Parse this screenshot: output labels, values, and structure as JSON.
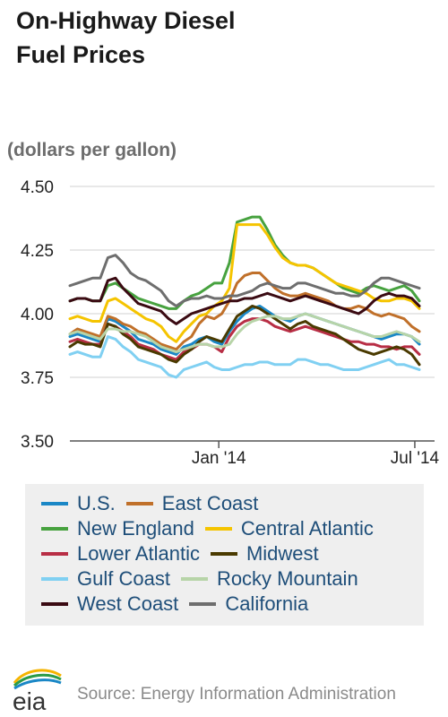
{
  "title_line1": "On-Highway Diesel",
  "title_line2": "Fuel Prices",
  "source": "Source: Energy Information Administration",
  "logo_text": "eia",
  "chart_data": {
    "type": "line",
    "title": "On-Highway Diesel Fuel Prices",
    "ylabel": "(dollars per gallon)",
    "ylim": [
      3.5,
      4.5
    ],
    "yticks": [
      "4.50",
      "4.25",
      "4.00",
      "3.75",
      "3.50"
    ],
    "ytick_values": [
      4.5,
      4.25,
      4.0,
      3.75,
      3.5
    ],
    "xticks": [
      {
        "label": "Jan '14",
        "x": 19.6
      },
      {
        "label": "Jul '14",
        "x": 45.4
      }
    ],
    "xlim": [
      0,
      48
    ],
    "grid": true,
    "legend_position": "bottom",
    "series": [
      {
        "name": "U.S.",
        "color": "#1a87c6",
        "values": [
          3.91,
          3.92,
          3.91,
          3.9,
          3.89,
          3.98,
          3.97,
          3.95,
          3.93,
          3.9,
          3.89,
          3.88,
          3.86,
          3.85,
          3.84,
          3.87,
          3.88,
          3.9,
          3.91,
          3.89,
          3.88,
          3.93,
          3.97,
          4.0,
          4.02,
          4.03,
          4.01,
          3.99,
          3.98,
          3.97,
          3.99,
          4.0,
          3.99,
          3.98,
          3.97,
          3.96,
          3.95,
          3.94,
          3.93,
          3.92,
          3.91,
          3.9,
          3.91,
          3.92,
          3.92,
          3.91,
          3.88
        ]
      },
      {
        "name": "East Coast",
        "color": "#c0702a",
        "values": [
          3.92,
          3.94,
          3.93,
          3.92,
          3.91,
          3.99,
          3.98,
          3.96,
          3.95,
          3.93,
          3.92,
          3.9,
          3.88,
          3.87,
          3.86,
          3.89,
          3.91,
          3.96,
          3.99,
          3.98,
          4.0,
          4.05,
          4.12,
          4.15,
          4.16,
          4.16,
          4.13,
          4.1,
          4.08,
          4.07,
          4.07,
          4.08,
          4.07,
          4.06,
          4.05,
          4.03,
          4.02,
          4.02,
          4.03,
          4.02,
          4.0,
          3.99,
          4.0,
          3.99,
          3.98,
          3.95,
          3.93
        ]
      },
      {
        "name": "New England",
        "color": "#47a23f",
        "values": [
          4.05,
          4.06,
          4.06,
          4.05,
          4.05,
          4.11,
          4.12,
          4.1,
          4.08,
          4.06,
          4.05,
          4.04,
          4.03,
          4.02,
          4.02,
          4.05,
          4.07,
          4.08,
          4.1,
          4.12,
          4.12,
          4.2,
          4.36,
          4.37,
          4.38,
          4.38,
          4.33,
          4.27,
          4.23,
          4.2,
          4.19,
          4.19,
          4.18,
          4.16,
          4.14,
          4.12,
          4.1,
          4.09,
          4.08,
          4.1,
          4.11,
          4.1,
          4.09,
          4.1,
          4.11,
          4.09,
          4.05
        ]
      },
      {
        "name": "Central Atlantic",
        "color": "#f5c400",
        "values": [
          3.98,
          3.99,
          3.98,
          3.97,
          3.97,
          4.05,
          4.06,
          4.04,
          4.02,
          4.0,
          3.98,
          3.97,
          3.95,
          3.91,
          3.89,
          3.93,
          3.96,
          3.99,
          4.0,
          4.03,
          4.05,
          4.1,
          4.35,
          4.35,
          4.35,
          4.35,
          4.31,
          4.26,
          4.22,
          4.2,
          4.19,
          4.19,
          4.18,
          4.16,
          4.14,
          4.12,
          4.11,
          4.1,
          4.09,
          4.08,
          4.06,
          4.05,
          4.05,
          4.06,
          4.06,
          4.05,
          4.02
        ]
      },
      {
        "name": "Lower Atlantic",
        "color": "#b82e45",
        "values": [
          3.89,
          3.9,
          3.89,
          3.88,
          3.88,
          3.96,
          3.95,
          3.93,
          3.91,
          3.88,
          3.87,
          3.86,
          3.84,
          3.83,
          3.82,
          3.85,
          3.86,
          3.88,
          3.88,
          3.87,
          3.85,
          3.91,
          3.95,
          3.97,
          3.98,
          3.98,
          3.97,
          3.95,
          3.94,
          3.93,
          3.94,
          3.95,
          3.94,
          3.93,
          3.92,
          3.91,
          3.9,
          3.89,
          3.89,
          3.88,
          3.88,
          3.87,
          3.87,
          3.86,
          3.87,
          3.87,
          3.84
        ]
      },
      {
        "name": "Midwest",
        "color": "#4a3a00",
        "values": [
          3.87,
          3.89,
          3.88,
          3.88,
          3.87,
          3.96,
          3.95,
          3.92,
          3.9,
          3.87,
          3.86,
          3.85,
          3.84,
          3.82,
          3.81,
          3.84,
          3.86,
          3.89,
          3.91,
          3.9,
          3.89,
          3.94,
          3.99,
          4.01,
          4.03,
          4.02,
          4.0,
          3.98,
          3.96,
          3.94,
          3.96,
          3.97,
          3.95,
          3.94,
          3.93,
          3.92,
          3.9,
          3.88,
          3.86,
          3.85,
          3.84,
          3.85,
          3.86,
          3.87,
          3.86,
          3.84,
          3.8
        ]
      },
      {
        "name": "Gulf Coast",
        "color": "#80d0f2",
        "values": [
          3.84,
          3.85,
          3.84,
          3.83,
          3.83,
          3.91,
          3.9,
          3.87,
          3.85,
          3.82,
          3.81,
          3.8,
          3.79,
          3.76,
          3.75,
          3.78,
          3.79,
          3.8,
          3.81,
          3.79,
          3.78,
          3.78,
          3.79,
          3.8,
          3.8,
          3.81,
          3.81,
          3.8,
          3.8,
          3.8,
          3.82,
          3.82,
          3.81,
          3.8,
          3.8,
          3.79,
          3.78,
          3.78,
          3.78,
          3.79,
          3.8,
          3.81,
          3.82,
          3.8,
          3.8,
          3.79,
          3.78
        ]
      },
      {
        "name": "Rocky Mountain",
        "color": "#b7d4a8",
        "values": [
          3.92,
          3.93,
          3.92,
          3.91,
          3.9,
          3.94,
          3.94,
          3.93,
          3.93,
          3.92,
          3.91,
          3.89,
          3.87,
          3.86,
          3.85,
          3.86,
          3.87,
          3.88,
          3.88,
          3.87,
          3.87,
          3.88,
          3.92,
          3.95,
          3.97,
          3.98,
          3.99,
          3.99,
          3.98,
          3.98,
          3.99,
          4.0,
          3.99,
          3.98,
          3.97,
          3.96,
          3.95,
          3.94,
          3.93,
          3.92,
          3.91,
          3.91,
          3.92,
          3.93,
          3.92,
          3.91,
          3.89
        ]
      },
      {
        "name": "West Coast",
        "color": "#3a0a12",
        "values": [
          4.05,
          4.06,
          4.06,
          4.05,
          4.05,
          4.13,
          4.14,
          4.1,
          4.07,
          4.04,
          4.03,
          4.02,
          4.01,
          3.98,
          3.96,
          3.98,
          4.0,
          4.01,
          4.02,
          4.03,
          4.04,
          4.05,
          4.05,
          4.06,
          4.06,
          4.07,
          4.08,
          4.07,
          4.06,
          4.05,
          4.06,
          4.07,
          4.06,
          4.05,
          4.04,
          4.03,
          4.02,
          4.01,
          4.0,
          4.02,
          4.05,
          4.07,
          4.08,
          4.07,
          4.07,
          4.06,
          4.03
        ]
      },
      {
        "name": "California",
        "color": "#6e6e6e",
        "values": [
          4.11,
          4.12,
          4.13,
          4.14,
          4.14,
          4.22,
          4.23,
          4.2,
          4.16,
          4.14,
          4.13,
          4.11,
          4.09,
          4.05,
          4.03,
          4.05,
          4.06,
          4.06,
          4.07,
          4.06,
          4.06,
          4.07,
          4.07,
          4.08,
          4.09,
          4.11,
          4.12,
          4.11,
          4.1,
          4.1,
          4.12,
          4.12,
          4.11,
          4.1,
          4.09,
          4.08,
          4.08,
          4.07,
          4.07,
          4.09,
          4.12,
          4.14,
          4.14,
          4.13,
          4.12,
          4.11,
          4.1
        ]
      }
    ]
  },
  "legend": [
    [
      "U.S.",
      "East Coast"
    ],
    [
      "New England",
      "Central Atlantic"
    ],
    [
      "Lower Atlantic",
      "Midwest"
    ],
    [
      "Gulf Coast",
      "Rocky Mountain"
    ],
    [
      "West Coast",
      "California"
    ]
  ],
  "colors": {
    "grid": "#d0d0d0",
    "axis": "#555555",
    "legend_bg": "#efefef",
    "legend_text": "#1e4e79"
  }
}
